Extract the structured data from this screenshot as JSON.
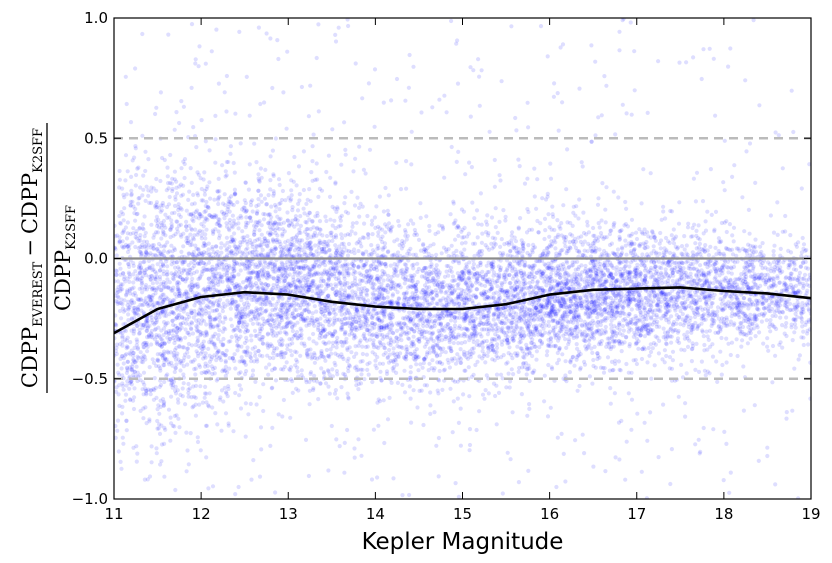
{
  "chart_data": {
    "type": "scatter",
    "xlabel": "Kepler Magnitude",
    "ylabel": {
      "numerator": "CDPP",
      "numerator_sub1": "EVEREST",
      "minus": "−",
      "numerator_2": "CDPP",
      "numerator_sub2": "K2SFF",
      "denominator": "CDPP",
      "denominator_sub": "K2SFF"
    },
    "xlim": [
      11,
      19
    ],
    "ylim": [
      -1.0,
      1.0
    ],
    "x_ticks": [
      11,
      12,
      13,
      14,
      15,
      16,
      17,
      18,
      19
    ],
    "y_ticks": [
      -1.0,
      -0.5,
      0.0,
      0.5,
      1.0
    ],
    "y_tick_labels": [
      "−1.0",
      "−0.5",
      "0.0",
      "0.5",
      "1.0"
    ],
    "grid": false,
    "reference_lines": [
      {
        "y": 0.5,
        "style": "dashed",
        "color": "#bbbbbb"
      },
      {
        "y": 0.0,
        "style": "solid",
        "color": "#8c8c8c"
      },
      {
        "y": -0.5,
        "style": "dashed",
        "color": "#bbbbbb"
      }
    ],
    "scatter_color": "#0000ff",
    "scatter_density_profile": {
      "x": [
        11,
        11.5,
        12,
        12.5,
        13,
        13.5,
        14,
        14.5,
        15,
        15.5,
        16,
        16.5,
        17,
        17.5,
        18,
        18.5,
        19
      ],
      "center": [
        -0.2,
        -0.17,
        -0.14,
        -0.1,
        -0.1,
        -0.15,
        -0.17,
        -0.2,
        -0.2,
        -0.18,
        -0.15,
        -0.15,
        -0.13,
        -0.12,
        -0.13,
        -0.14,
        -0.15
      ],
      "spread": [
        0.3,
        0.28,
        0.26,
        0.22,
        0.2,
        0.18,
        0.17,
        0.17,
        0.17,
        0.16,
        0.15,
        0.15,
        0.14,
        0.13,
        0.12,
        0.11,
        0.11
      ],
      "relative_density": [
        0.8,
        1.0,
        1.0,
        1.0,
        1.0,
        0.9,
        0.85,
        0.8,
        0.8,
        0.8,
        0.85,
        0.85,
        0.8,
        0.7,
        0.6,
        0.5,
        0.4
      ]
    },
    "median_line": {
      "color": "#000000",
      "x": [
        11.0,
        11.5,
        12.0,
        12.5,
        13.0,
        13.5,
        14.0,
        14.5,
        15.0,
        15.5,
        16.0,
        16.5,
        17.0,
        17.5,
        18.0,
        18.5,
        19.0
      ],
      "y": [
        -0.31,
        -0.21,
        -0.16,
        -0.14,
        -0.15,
        -0.18,
        -0.2,
        -0.21,
        -0.21,
        -0.19,
        -0.15,
        -0.13,
        -0.125,
        -0.12,
        -0.135,
        -0.145,
        -0.165
      ]
    }
  }
}
